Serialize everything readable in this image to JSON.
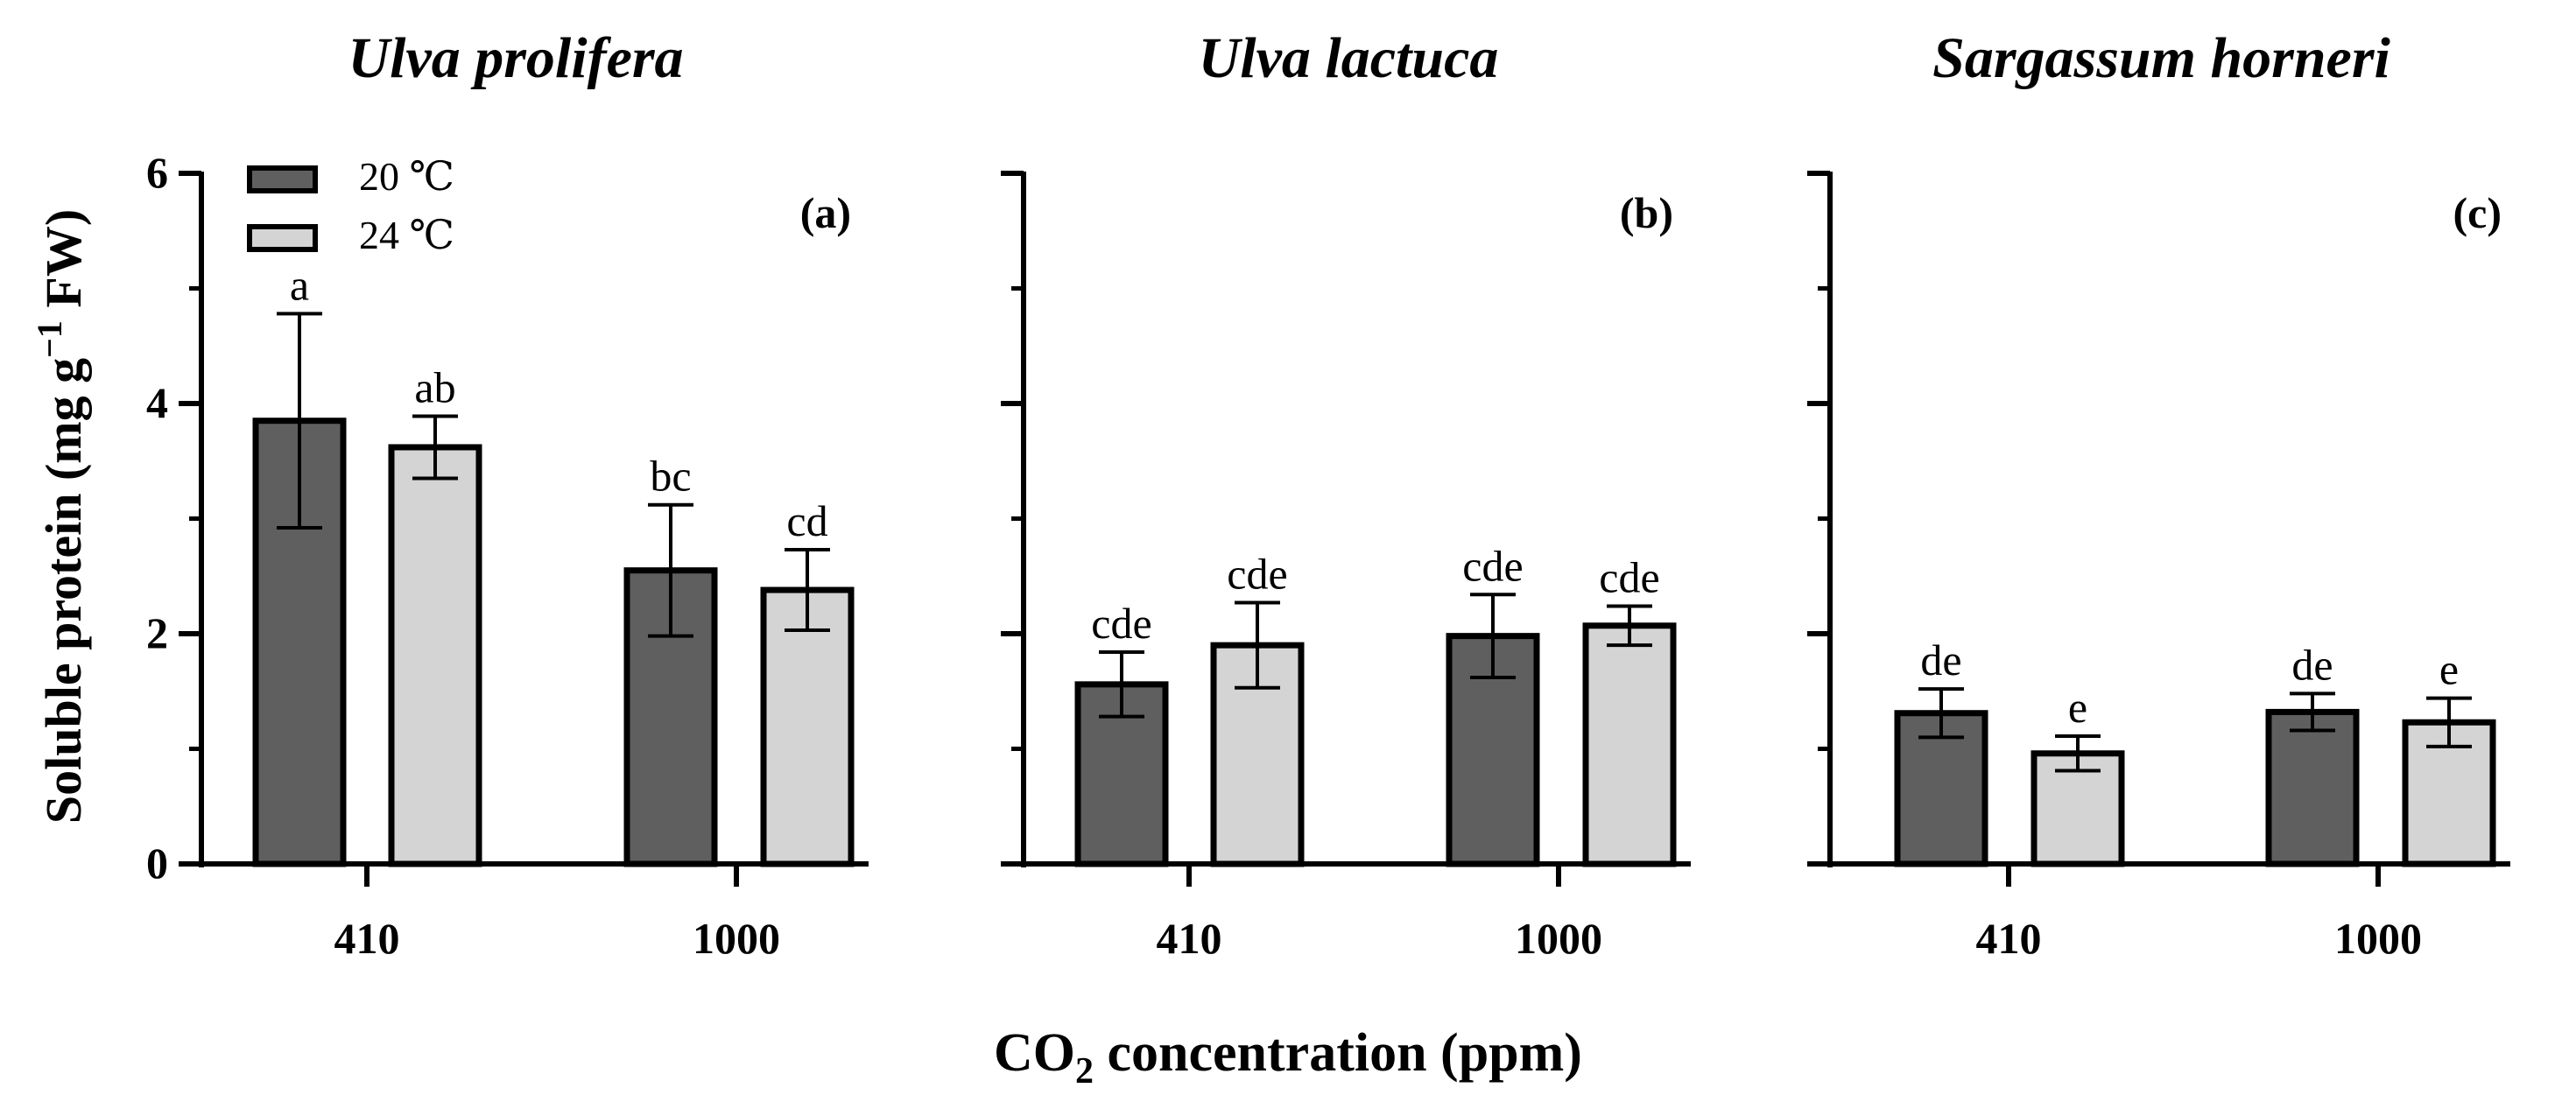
{
  "figure": {
    "ylabel_main": "Soluble protein (mg g",
    "ylabel_sup": "−1",
    "ylabel_tail": " FW)",
    "xlabel_main": "CO",
    "xlabel_sub": "2",
    "xlabel_tail": " concentration (ppm)"
  },
  "colors": {
    "series_20": "#5f5f5f",
    "series_24": "#d4d4d4",
    "stroke": "#000000"
  },
  "legend": [
    {
      "label": "20 ℃",
      "series": 0
    },
    {
      "label": "24 ℃",
      "series": 1
    }
  ],
  "chart_data": [
    {
      "type": "bar",
      "title": "Ulva prolifera",
      "panel_label": "(a)",
      "categories": [
        "410",
        "1000"
      ],
      "ylim": [
        0,
        6
      ],
      "yticks": [
        0,
        2,
        4,
        6
      ],
      "ytick_labels": [
        "0",
        "2",
        "4",
        "6"
      ],
      "series": [
        {
          "name": "20 ℃",
          "values": [
            3.85,
            2.55
          ],
          "errors": [
            0.93,
            0.57
          ],
          "letters": [
            "a",
            "bc"
          ]
        },
        {
          "name": "24 ℃",
          "values": [
            3.62,
            2.38
          ],
          "errors": [
            0.27,
            0.35
          ],
          "letters": [
            "ab",
            "cd"
          ]
        }
      ]
    },
    {
      "type": "bar",
      "title": "Ulva lactuca",
      "panel_label": "(b)",
      "categories": [
        "410",
        "1000"
      ],
      "ylim": [
        0,
        6
      ],
      "yticks": [
        0,
        2,
        4,
        6
      ],
      "ytick_labels": [],
      "series": [
        {
          "name": "20 ℃",
          "values": [
            1.56,
            1.98
          ],
          "errors": [
            0.28,
            0.36
          ],
          "letters": [
            "cde",
            "cde"
          ]
        },
        {
          "name": "24 ℃",
          "values": [
            1.9,
            2.07
          ],
          "errors": [
            0.37,
            0.17
          ],
          "letters": [
            "cde",
            "cde"
          ]
        }
      ]
    },
    {
      "type": "bar",
      "title": "Sargassum horneri",
      "panel_label": "(c)",
      "categories": [
        "410",
        "1000"
      ],
      "ylim": [
        0,
        6
      ],
      "yticks": [
        0,
        2,
        4,
        6
      ],
      "ytick_labels": [],
      "series": [
        {
          "name": "20 ℃",
          "values": [
            1.31,
            1.32
          ],
          "errors": [
            0.21,
            0.16
          ],
          "letters": [
            "de",
            "de"
          ]
        },
        {
          "name": "24 ℃",
          "values": [
            0.96,
            1.23
          ],
          "errors": [
            0.15,
            0.21
          ],
          "letters": [
            "e",
            "e"
          ]
        }
      ]
    }
  ]
}
